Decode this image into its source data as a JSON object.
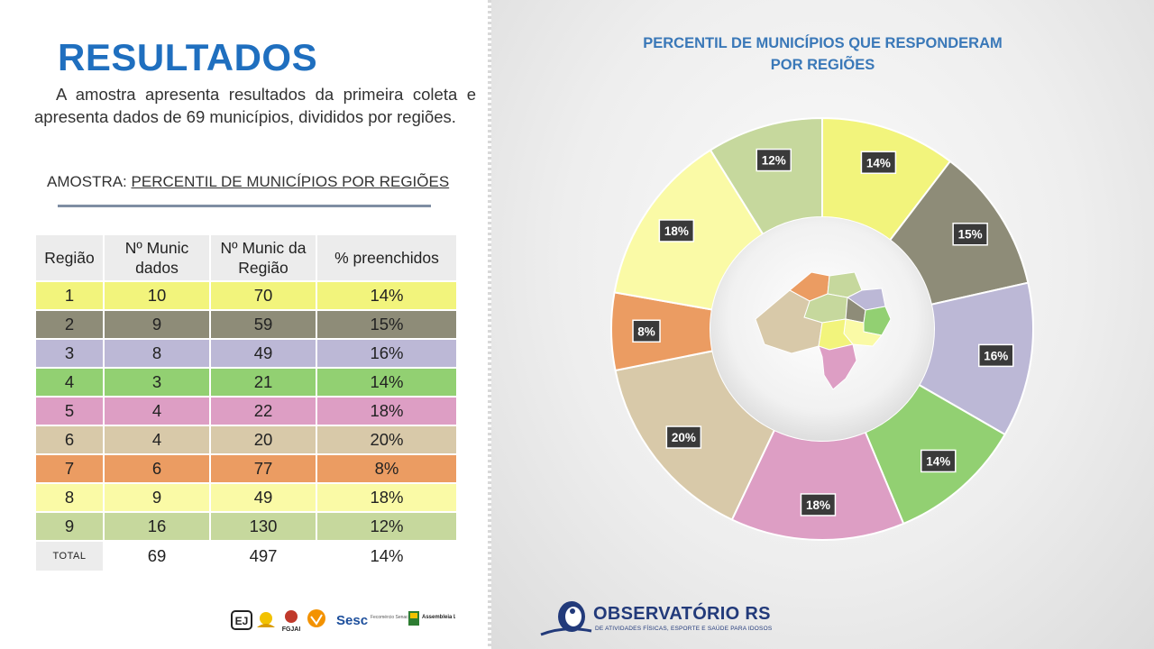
{
  "slide": {
    "title": "RESULTADOS",
    "intro": "A amostra apresenta resultados da primeira coleta e apresenta dados de 69 municípios, divididos por regiões.",
    "amostra_prefix": "AMOSTRA: ",
    "amostra_label": "PERCENTIL DE MUNICÍPIOS POR REGIÕES"
  },
  "table": {
    "headers": [
      "Região",
      "Nº Munic dados",
      "Nº Munic da Região",
      "% preenchidos"
    ],
    "rows": [
      {
        "cells": [
          "1",
          "10",
          "70",
          "14%"
        ],
        "color": "#f2f47c"
      },
      {
        "cells": [
          "2",
          "9",
          "59",
          "15%"
        ],
        "color": "#8e8c78"
      },
      {
        "cells": [
          "3",
          "8",
          "49",
          "16%"
        ],
        "color": "#bcb8d6"
      },
      {
        "cells": [
          "4",
          "3",
          "21",
          "14%"
        ],
        "color": "#92d072"
      },
      {
        "cells": [
          "5",
          "4",
          "22",
          "18%"
        ],
        "color": "#dd9ec4"
      },
      {
        "cells": [
          "6",
          "4",
          "20",
          "20%"
        ],
        "color": "#d8c9a9"
      },
      {
        "cells": [
          "7",
          "6",
          "77",
          "8%"
        ],
        "color": "#eb9c62"
      },
      {
        "cells": [
          "8",
          "9",
          "49",
          "18%"
        ],
        "color": "#fafaa6"
      },
      {
        "cells": [
          "9",
          "16",
          "130",
          "12%"
        ],
        "color": "#c6d89d"
      }
    ],
    "total": [
      "TOTAL",
      "69",
      "497",
      "14%"
    ]
  },
  "logos": [
    "ej-logo",
    "sun-logo",
    "fgjai-logo",
    "orange-logo",
    "sesc-logo",
    "assembleia-logo"
  ],
  "logo_texts": {
    "fgjai": "FGJAI",
    "sesc": "Sesc",
    "fecomercio": "Fecomércio Senac",
    "assembleia": "Assembleia Legislativa"
  },
  "chart_data": {
    "type": "pie",
    "donut": true,
    "title": "PERCENTIL DE MUNICÍPIOS QUE RESPONDERAM POR REGIÕES",
    "title_lines": [
      "PERCENTIL DE MUNICÍPIOS QUE RESPONDERAM",
      "POR REGIÕES"
    ],
    "categories": [
      "1",
      "2",
      "3",
      "4",
      "5",
      "6",
      "7",
      "8",
      "9"
    ],
    "values": [
      14,
      15,
      16,
      14,
      18,
      20,
      8,
      18,
      12
    ],
    "labels": [
      "14%",
      "15%",
      "16%",
      "14%",
      "18%",
      "20%",
      "8%",
      "18%",
      "12%"
    ],
    "colors": [
      "#f2f47c",
      "#8e8c78",
      "#bcb8d6",
      "#92d072",
      "#dd9ec4",
      "#d8c9a9",
      "#eb9c62",
      "#fafaa6",
      "#c6d89d"
    ],
    "legend": "none"
  },
  "footer": {
    "brand": "OBSERVATÓRIO RS",
    "tagline": "DE ATIVIDADES FÍSICAS, ESPORTE E SAÚDE PARA IDOSOS"
  }
}
